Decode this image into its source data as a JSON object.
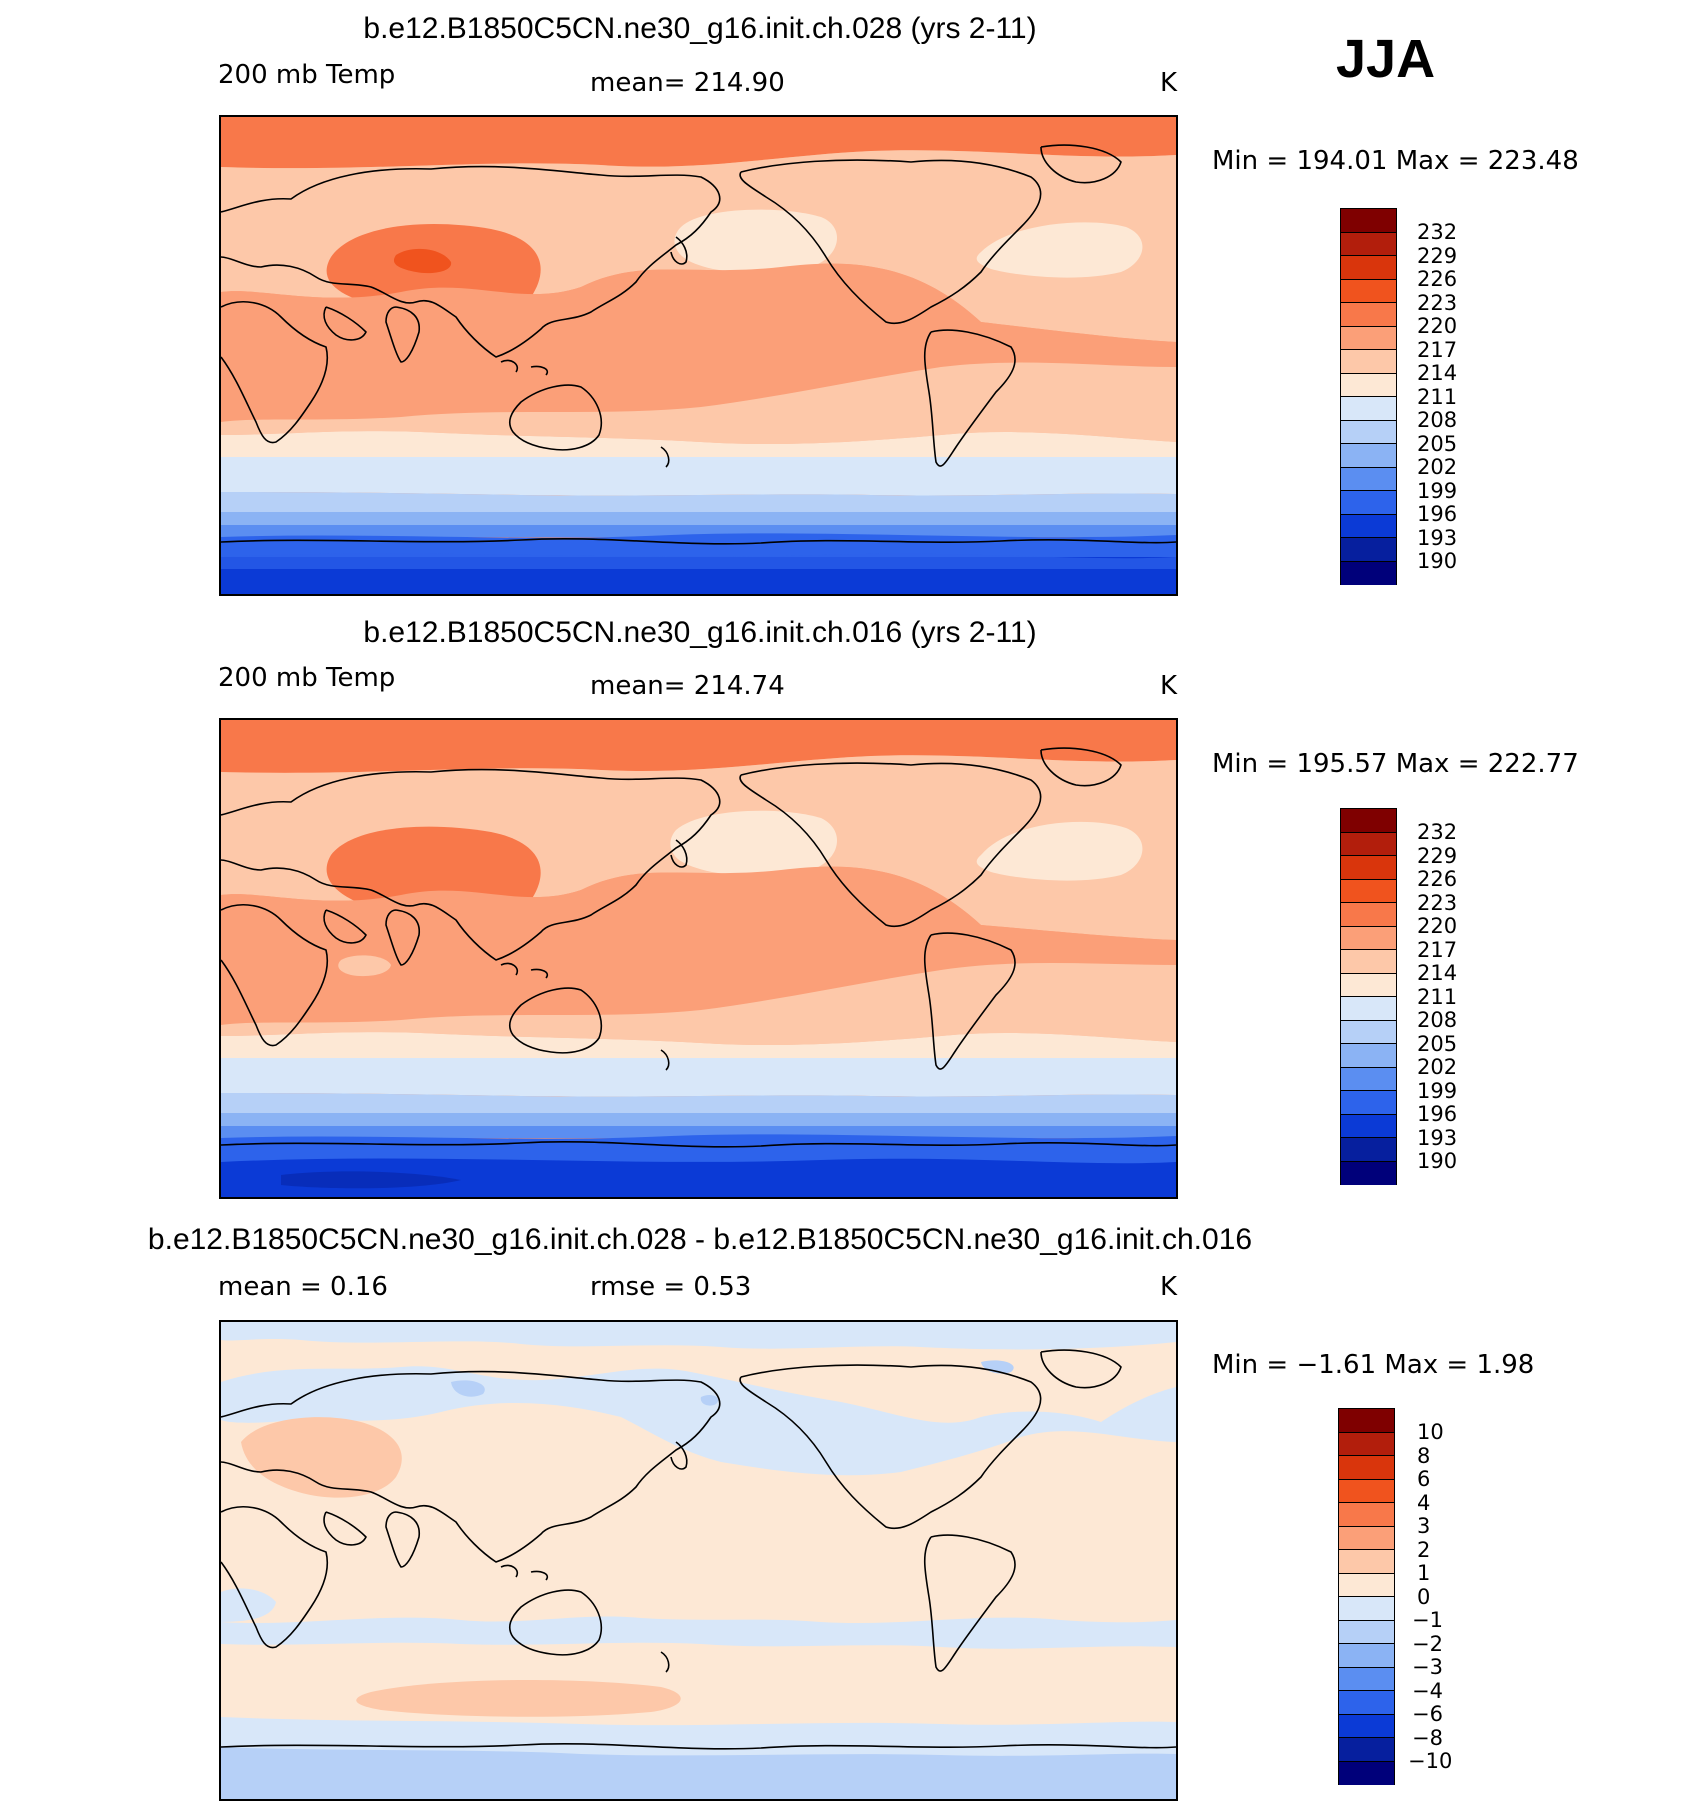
{
  "season": "JJA",
  "panels": [
    {
      "title": "b.e12.B1850C5CN.ne30_g16.init.ch.028 (yrs 2-11)",
      "left_label": "200 mb Temp",
      "center_label": "mean=  214.90",
      "units": "K",
      "minmax": "Min  =  194.01  Max  =  223.48",
      "colorbar_labels": [
        "232",
        "229",
        "226",
        "223",
        "220",
        "217",
        "214",
        "211",
        "208",
        "205",
        "202",
        "199",
        "196",
        "193",
        "190"
      ]
    },
    {
      "title": "b.e12.B1850C5CN.ne30_g16.init.ch.016 (yrs 2-11)",
      "left_label": "200 mb Temp",
      "center_label": "mean=  214.74",
      "units": "K",
      "minmax": "Min  =  195.57  Max  =  222.77",
      "colorbar_labels": [
        "232",
        "229",
        "226",
        "223",
        "220",
        "217",
        "214",
        "211",
        "208",
        "205",
        "202",
        "199",
        "196",
        "193",
        "190"
      ]
    },
    {
      "title": "b.e12.B1850C5CN.ne30_g16.init.ch.028 - b.e12.B1850C5CN.ne30_g16.init.ch.016",
      "left_label": "mean =     0.16",
      "center_label": "rmse =     0.53",
      "units": "K",
      "minmax": "Min  =   −1.61  Max  =     1.98",
      "colorbar_labels": [
        "10",
        "8",
        "6",
        "4",
        "3",
        "2",
        "1",
        "0",
        "−1",
        "−2",
        "−3",
        "−4",
        "−6",
        "−8",
        "−10"
      ]
    }
  ],
  "colors": {
    "bins": [
      "#7f0000",
      "#b21e0c",
      "#d9350c",
      "#f0531e",
      "#f8784a",
      "#fb9f78",
      "#fdc8a9",
      "#fde8d5",
      "#d8e7f9",
      "#b6d0f7",
      "#8bb3f4",
      "#5b8ef1",
      "#2d63eb",
      "#0b3ad6",
      "#061f9e",
      "#00007a"
    ]
  },
  "chart_data": [
    {
      "type": "heatmap",
      "title": "b.e12.B1850C5CN.ne30_g16.init.ch.028 (yrs 2-11)",
      "variable": "200 mb Temp",
      "units": "K",
      "season": "JJA",
      "mean": 214.9,
      "min": 194.01,
      "max": 223.48,
      "contour_levels": [
        190,
        193,
        196,
        199,
        202,
        205,
        208,
        211,
        214,
        217,
        220,
        223,
        226,
        229,
        232
      ],
      "zonal_bands": [
        {
          "lat_range": "north polar",
          "value_bin": "220-223"
        },
        {
          "lat_range": "northern midlatitudes",
          "value_bin": "214-217"
        },
        {
          "lat_range": "tropics",
          "value_bin": "217-220"
        },
        {
          "lat_range": "southern subtropics",
          "value_bin": "211-214"
        },
        {
          "lat_range": "southern midlatitudes",
          "value_bin": "205-211"
        },
        {
          "lat_range": "antarctic",
          "value_bin": "193-199"
        }
      ]
    },
    {
      "type": "heatmap",
      "title": "b.e12.B1850C5CN.ne30_g16.init.ch.016 (yrs 2-11)",
      "variable": "200 mb Temp",
      "units": "K",
      "season": "JJA",
      "mean": 214.74,
      "min": 195.57,
      "max": 222.77,
      "contour_levels": [
        190,
        193,
        196,
        199,
        202,
        205,
        208,
        211,
        214,
        217,
        220,
        223,
        226,
        229,
        232
      ]
    },
    {
      "type": "heatmap",
      "title": "b.e12.B1850C5CN.ne30_g16.init.ch.028 - b.e12.B1850C5CN.ne30_g16.init.ch.016",
      "units": "K",
      "mean": 0.16,
      "rmse": 0.53,
      "min": -1.61,
      "max": 1.98,
      "contour_levels": [
        -10,
        -8,
        -6,
        -4,
        -3,
        -2,
        -1,
        0,
        1,
        2,
        3,
        4,
        6,
        8,
        10
      ]
    }
  ]
}
